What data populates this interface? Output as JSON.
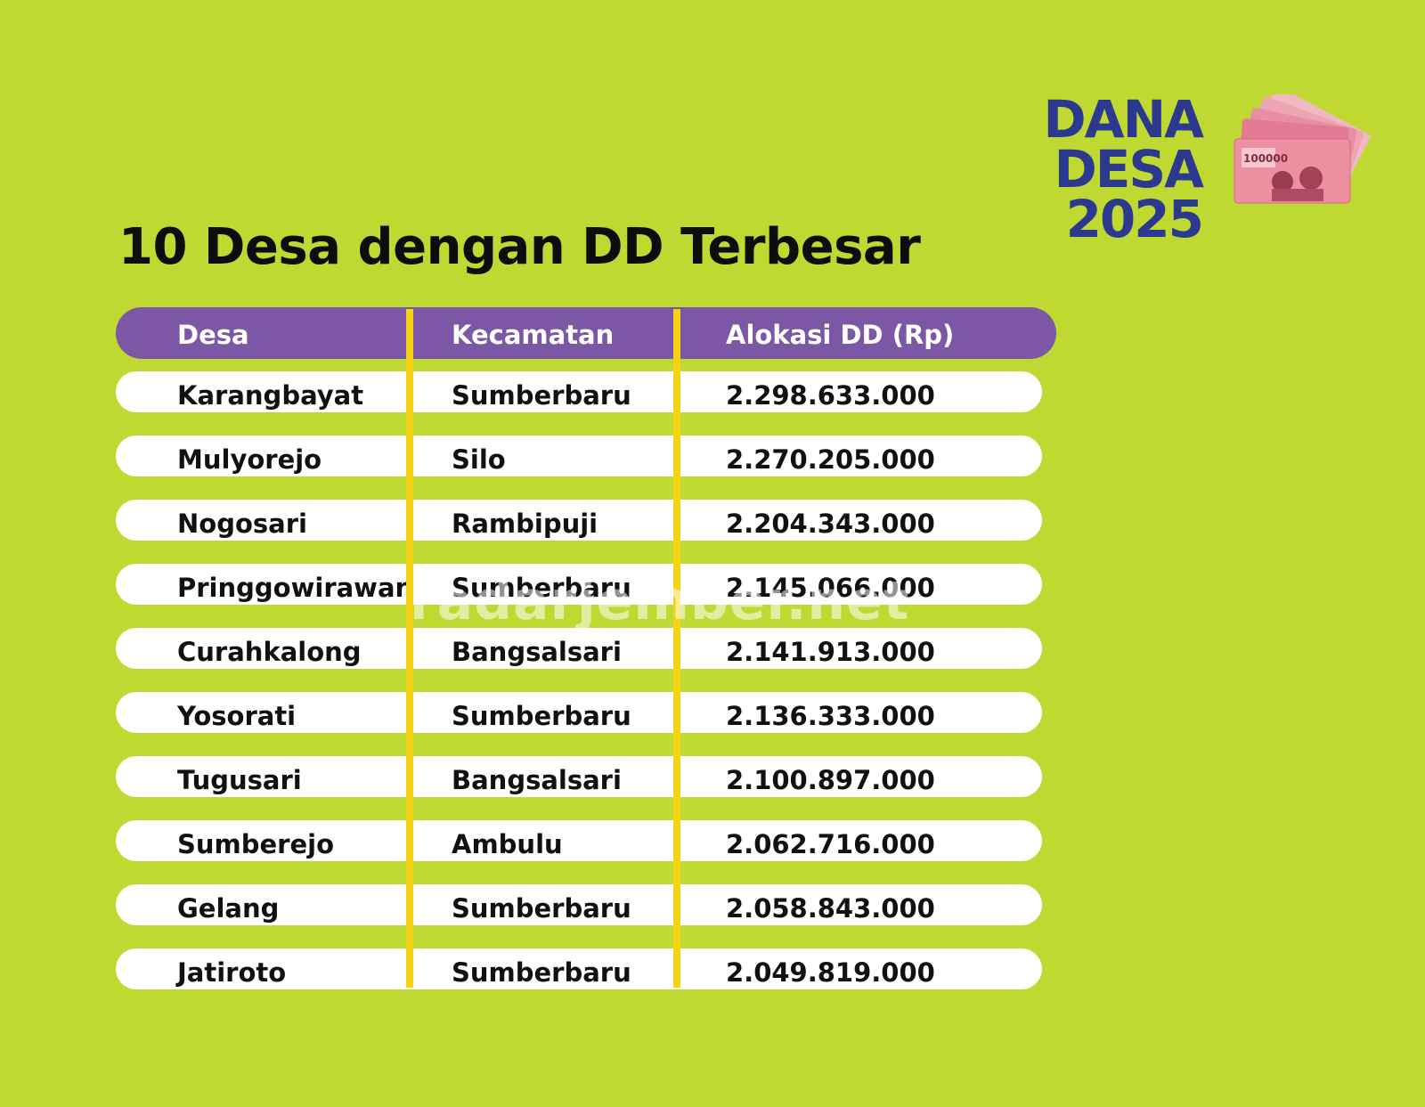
{
  "chart_data": {
    "type": "table",
    "title": "10 Desa dengan DD Terbesar",
    "columns": [
      "Desa",
      "Kecamatan",
      "Alokasi DD (Rp)"
    ],
    "rows": [
      [
        "Karangbayat",
        "Sumberbaru",
        "2.298.633.000"
      ],
      [
        "Mulyorejo",
        "Silo",
        "2.270.205.000"
      ],
      [
        "Nogosari",
        "Rambipuji",
        "2.204.343.000"
      ],
      [
        "Pringgowirawan",
        "Sumberbaru",
        "2.145.066.000"
      ],
      [
        "Curahkalong",
        "Bangsalsari",
        "2.141.913.000"
      ],
      [
        "Yosorati",
        "Sumberbaru",
        "2.136.333.000"
      ],
      [
        "Tugusari",
        "Bangsalsari",
        "2.100.897.000"
      ],
      [
        "Sumberejo",
        "Ambulu",
        "2.062.716.000"
      ],
      [
        "Gelang",
        "Sumberbaru",
        "2.058.843.000"
      ],
      [
        "Jatiroto",
        "Sumberbaru",
        "2.049.819.000"
      ]
    ]
  },
  "logo": {
    "line1": "DANA",
    "line2": "DESA",
    "line3": "2025",
    "banknote_text": "100000",
    "icon": "banknotes-fan-icon"
  },
  "watermark": "radarjember.net",
  "colors": {
    "background": "#bfd832",
    "header": "#7b57a6",
    "divider": "#f5d214",
    "logo_text": "#2b3a8f",
    "row": "#ffffff"
  }
}
